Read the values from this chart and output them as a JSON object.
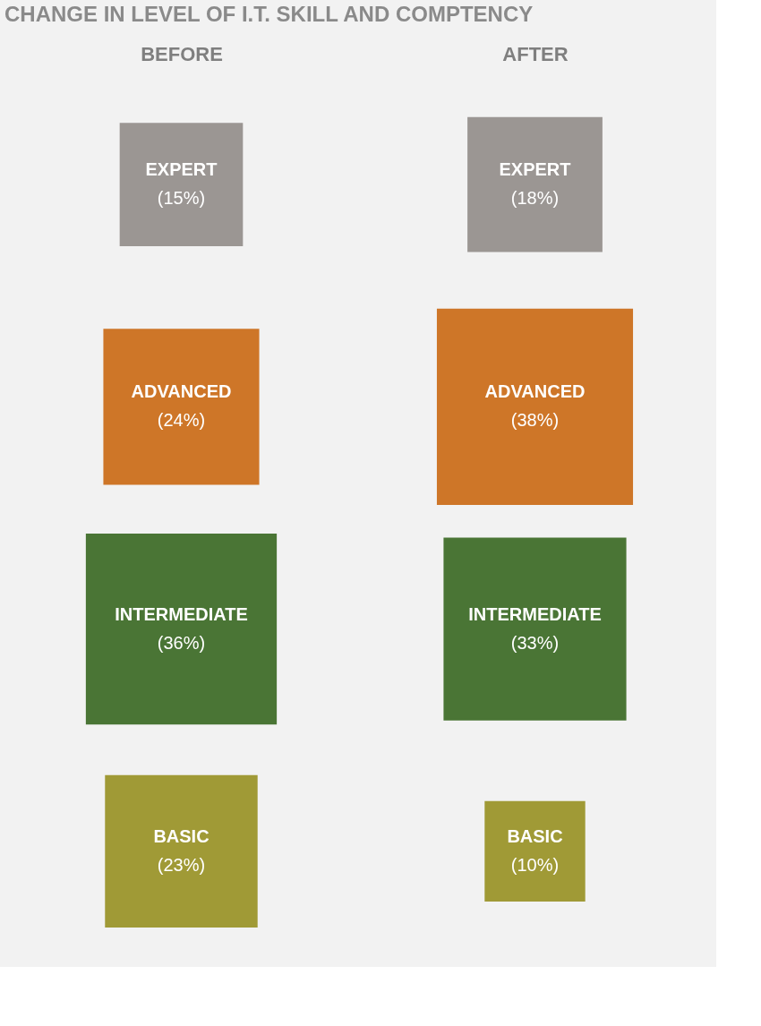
{
  "chart_data": {
    "type": "other",
    "title": "CHANGE IN LEVEL OF I.T. SKILL AND COMPTENCY",
    "categories": [
      "EXPERT",
      "ADVANCED",
      "INTERMEDIATE",
      "BASIC"
    ],
    "series": [
      {
        "name": "BEFORE",
        "colors": [
          "#9b9693",
          "#ce7628",
          "#4a7535",
          "#a09a36"
        ],
        "values": [
          15,
          24,
          36,
          23
        ],
        "value_labels": [
          "(15%)",
          "(24%)",
          "(36%)",
          "(23%)"
        ]
      },
      {
        "name": "AFTER",
        "colors": [
          "#9b9693",
          "#ce7628",
          "#4a7535",
          "#a09a36"
        ],
        "values": [
          18,
          38,
          33,
          10
        ],
        "value_labels": [
          "(18%)",
          "(38%)",
          "(33%)",
          "(10%)"
        ]
      }
    ],
    "legend": false
  }
}
